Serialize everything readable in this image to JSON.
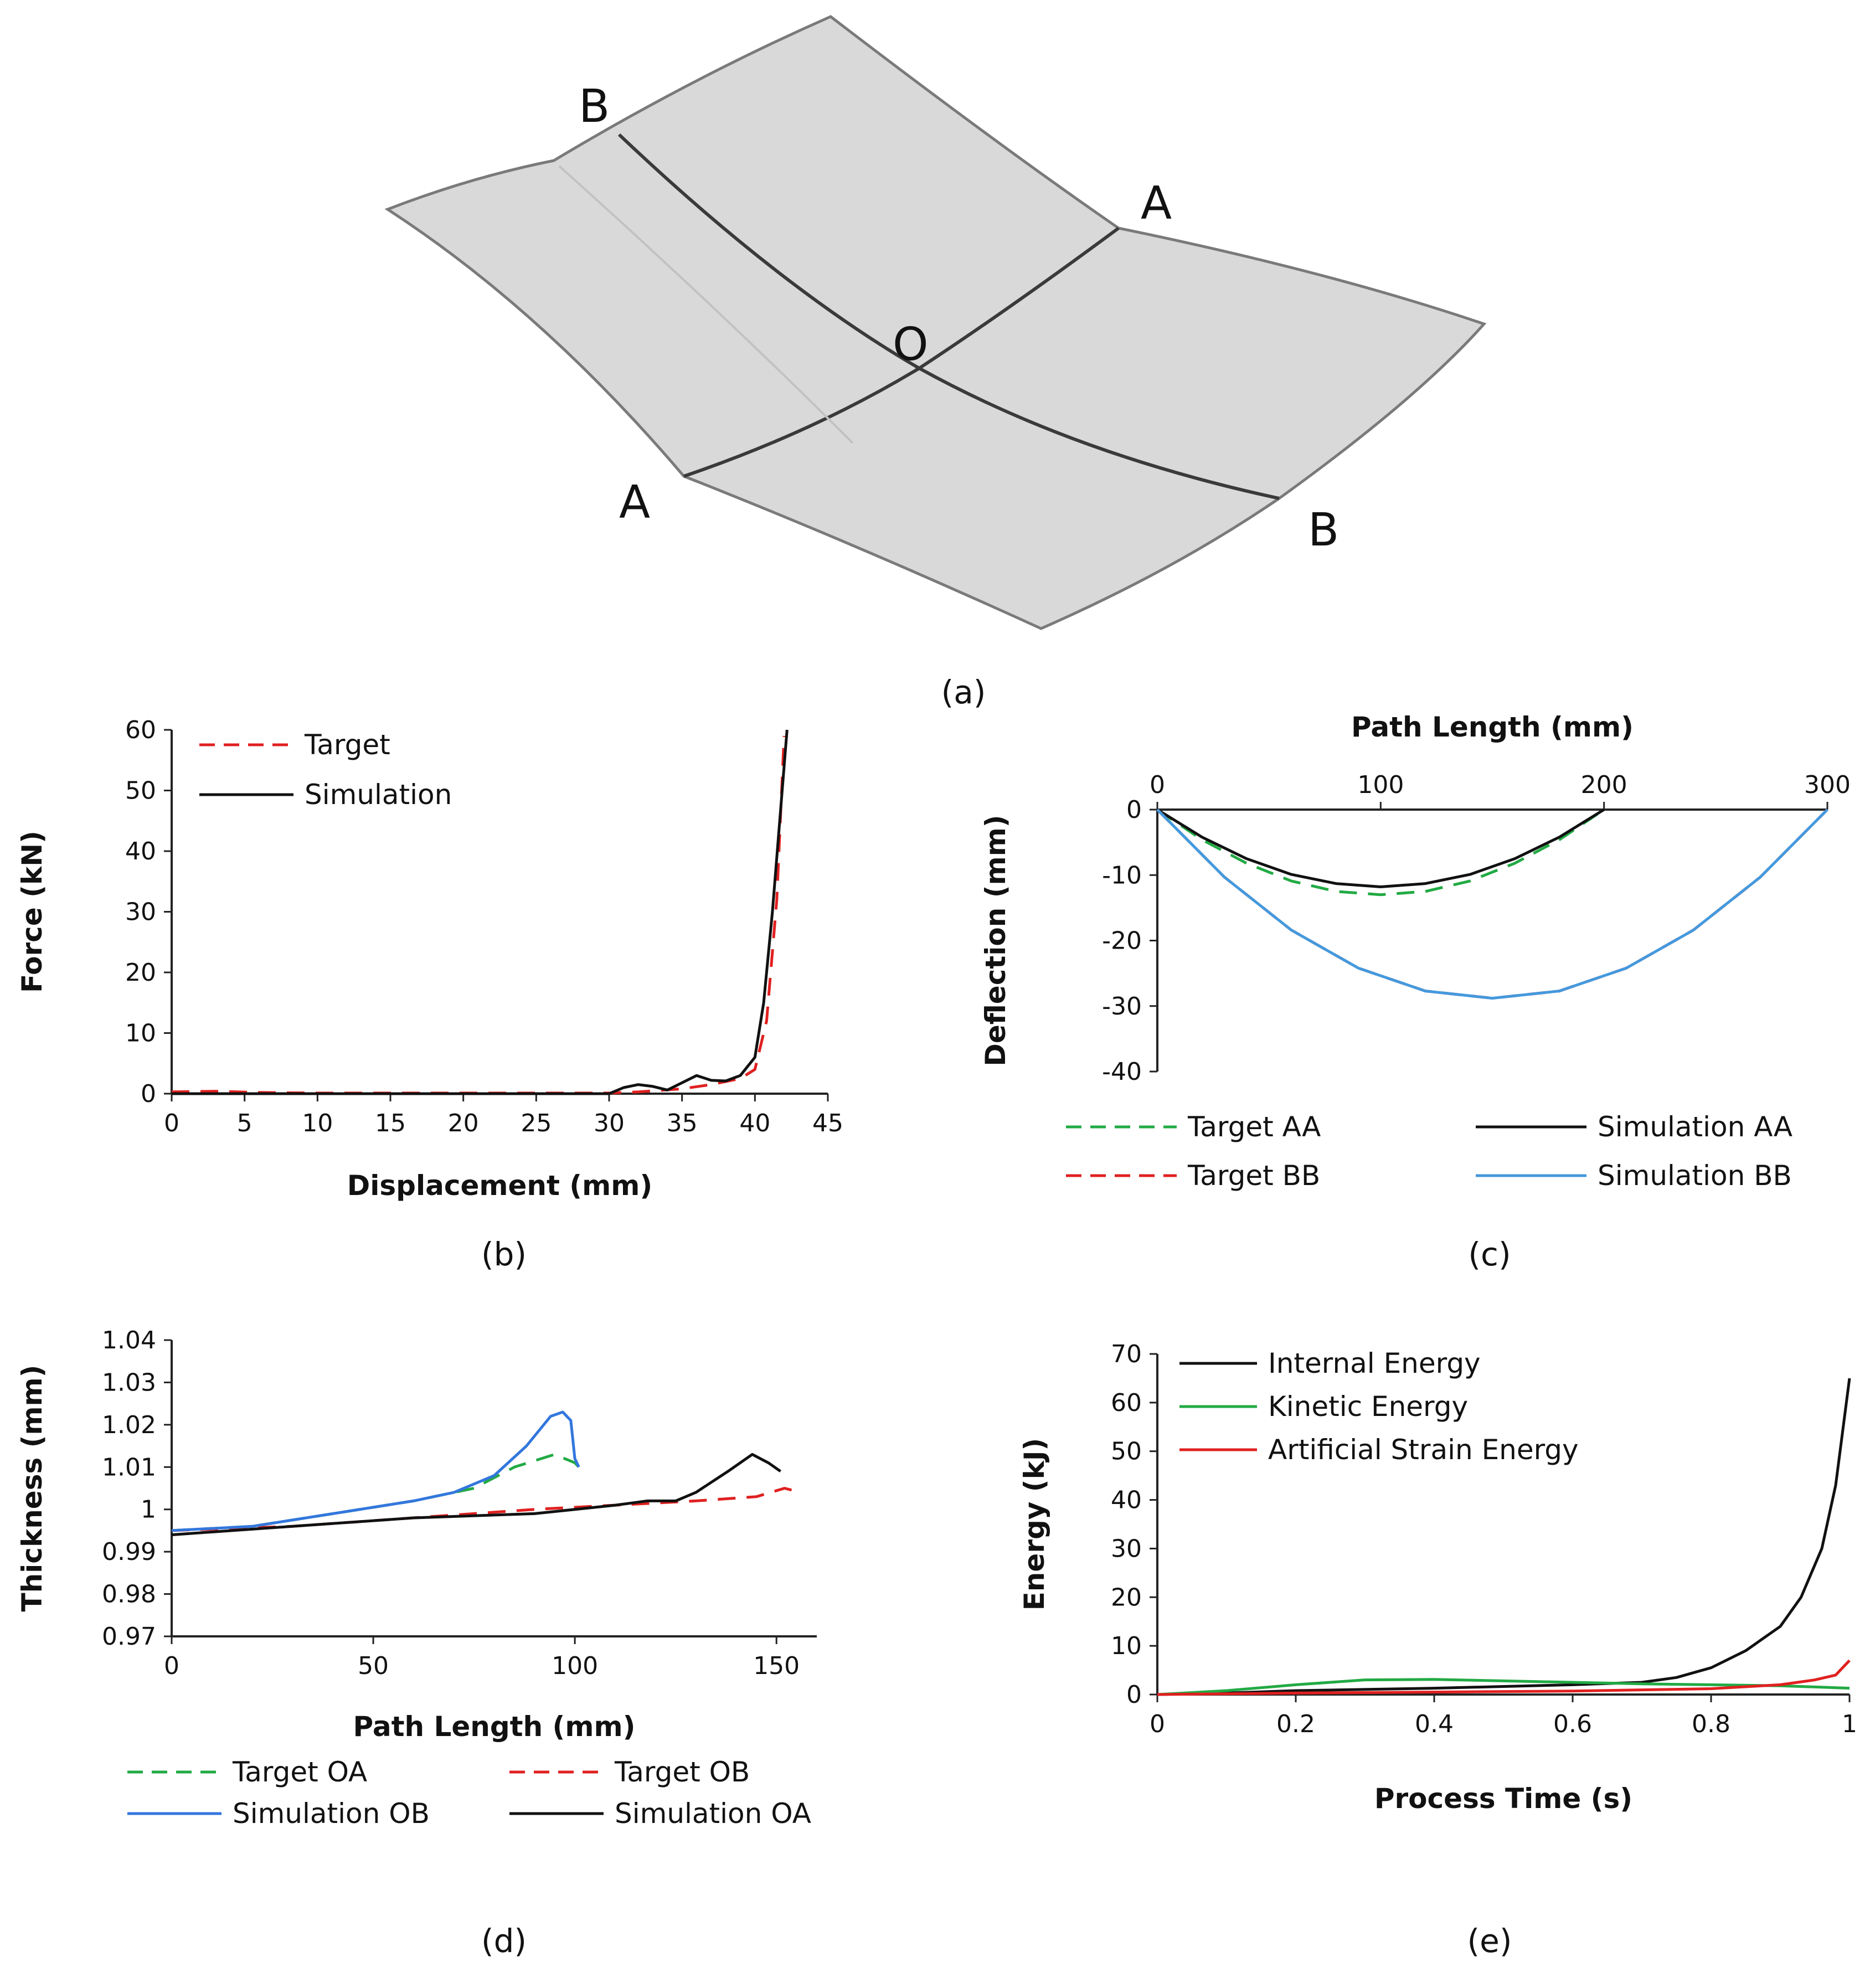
{
  "panel_labels": {
    "a": "(a)",
    "b": "(b)",
    "c": "(c)",
    "d": "(d)",
    "e": "(e)"
  },
  "panel_a": {
    "point_labels": {
      "B_top": "B",
      "A_right": "A",
      "O_center": "O",
      "A_left": "A",
      "B_bottom": "B"
    },
    "colors": {
      "sheet_fill": "#d9d9d9",
      "sheet_edge": "#7a7a7a",
      "path_line": "#3a3a3a"
    }
  },
  "chart_data": [
    {
      "id": "b",
      "type": "line",
      "title": "",
      "xlabel": "Displacement  (mm)",
      "ylabel": "Force (kN)",
      "xlim": [
        0,
        45
      ],
      "ylim": [
        0,
        60
      ],
      "xticks": [
        0,
        5,
        10,
        15,
        20,
        25,
        30,
        35,
        40,
        45
      ],
      "yticks": [
        0,
        10,
        20,
        30,
        40,
        50,
        60
      ],
      "legend_position": "top-left",
      "series": [
        {
          "name": "Target",
          "color": "#e02020",
          "dash": "dashed",
          "points": [
            [
              0,
              0.3
            ],
            [
              3,
              0.4
            ],
            [
              6,
              0.2
            ],
            [
              10,
              0.1
            ],
            [
              20,
              0.1
            ],
            [
              30,
              0.1
            ],
            [
              32,
              0.3
            ],
            [
              35,
              0.8
            ],
            [
              37,
              1.5
            ],
            [
              39,
              2.5
            ],
            [
              40,
              4
            ],
            [
              40.8,
              12
            ],
            [
              41.5,
              32
            ],
            [
              42,
              59
            ]
          ]
        },
        {
          "name": "Simulation",
          "color": "#111111",
          "dash": "solid",
          "points": [
            [
              0,
              0
            ],
            [
              10,
              0
            ],
            [
              20,
              0
            ],
            [
              30,
              0
            ],
            [
              31,
              1
            ],
            [
              32,
              1.5
            ],
            [
              33,
              1.2
            ],
            [
              34,
              0.6
            ],
            [
              35,
              1.8
            ],
            [
              36,
              3
            ],
            [
              37,
              2.2
            ],
            [
              38,
              2.1
            ],
            [
              39,
              3
            ],
            [
              40,
              6
            ],
            [
              40.6,
              15
            ],
            [
              41.2,
              30
            ],
            [
              41.7,
              45
            ],
            [
              42.2,
              60
            ]
          ]
        }
      ]
    },
    {
      "id": "c",
      "type": "line",
      "title": "",
      "xlabel": "Path Length (mm)",
      "ylabel": "Deflection  (mm)",
      "x_axis_position": "top",
      "xlim": [
        0,
        300
      ],
      "ylim": [
        -40,
        0
      ],
      "xticks": [
        0,
        100,
        200,
        300
      ],
      "yticks": [
        0,
        -10,
        -20,
        -30,
        -40
      ],
      "legend_position": "bottom",
      "series": [
        {
          "name": "Target AA",
          "color": "#22aa44",
          "dash": "dashed",
          "points": [
            [
              0,
              0
            ],
            [
              20,
              -4.6
            ],
            [
              40,
              -8.2
            ],
            [
              60,
              -10.9
            ],
            [
              80,
              -12.5
            ],
            [
              100,
              -13.0
            ],
            [
              120,
              -12.5
            ],
            [
              140,
              -10.9
            ],
            [
              160,
              -8.2
            ],
            [
              180,
              -4.6
            ],
            [
              200,
              0
            ]
          ]
        },
        {
          "name": "Simulation AA",
          "color": "#111111",
          "dash": "solid",
          "points": [
            [
              0,
              0
            ],
            [
              20,
              -4.2
            ],
            [
              40,
              -7.5
            ],
            [
              60,
              -9.9
            ],
            [
              80,
              -11.3
            ],
            [
              100,
              -11.8
            ],
            [
              120,
              -11.3
            ],
            [
              140,
              -9.9
            ],
            [
              160,
              -7.5
            ],
            [
              180,
              -4.2
            ],
            [
              200,
              0
            ]
          ]
        },
        {
          "name": "Target BB",
          "color": "#e02020",
          "dash": "dashed",
          "points": [
            [
              0,
              0
            ],
            [
              30,
              -10.3
            ],
            [
              60,
              -18.4
            ],
            [
              90,
              -24.2
            ],
            [
              120,
              -27.7
            ],
            [
              150,
              -28.8
            ],
            [
              180,
              -27.7
            ],
            [
              210,
              -24.2
            ],
            [
              240,
              -18.4
            ],
            [
              270,
              -10.3
            ],
            [
              300,
              0
            ]
          ]
        },
        {
          "name": "Simulation BB",
          "color": "#4499dd",
          "dash": "solid",
          "points": [
            [
              0,
              0
            ],
            [
              30,
              -10.3
            ],
            [
              60,
              -18.4
            ],
            [
              90,
              -24.2
            ],
            [
              120,
              -27.7
            ],
            [
              150,
              -28.8
            ],
            [
              180,
              -27.7
            ],
            [
              210,
              -24.2
            ],
            [
              240,
              -18.4
            ],
            [
              270,
              -10.3
            ],
            [
              300,
              0
            ]
          ]
        }
      ]
    },
    {
      "id": "d",
      "type": "line",
      "title": "",
      "xlabel": "Path Length (mm)",
      "ylabel": "Thickness  (mm)",
      "xlim": [
        0,
        160
      ],
      "ylim": [
        0.97,
        1.04
      ],
      "xticks": [
        0,
        50,
        100,
        150
      ],
      "yticks": [
        1.04,
        1.03,
        1.02,
        1.01,
        1,
        0.99,
        0.98,
        0.97
      ],
      "legend_position": "bottom",
      "series": [
        {
          "name": "Target OA",
          "color": "#22aa44",
          "dash": "dashed",
          "points": [
            [
              0,
              0.995
            ],
            [
              20,
              0.996
            ],
            [
              40,
              0.999
            ],
            [
              60,
              1.002
            ],
            [
              75,
              1.005
            ],
            [
              85,
              1.01
            ],
            [
              95,
              1.013
            ],
            [
              100,
              1.011
            ],
            [
              102,
              1.009
            ]
          ]
        },
        {
          "name": "Target OB",
          "color": "#e02020",
          "dash": "dashed",
          "points": [
            [
              0,
              0.995
            ],
            [
              30,
              0.996
            ],
            [
              60,
              0.998
            ],
            [
              90,
              1.0
            ],
            [
              110,
              1.001
            ],
            [
              130,
              1.002
            ],
            [
              145,
              1.003
            ],
            [
              152,
              1.005
            ],
            [
              156,
              1.004
            ]
          ]
        },
        {
          "name": "Simulation OB",
          "color": "#3377dd",
          "dash": "solid",
          "points": [
            [
              0,
              0.995
            ],
            [
              20,
              0.996
            ],
            [
              40,
              0.999
            ],
            [
              60,
              1.002
            ],
            [
              70,
              1.004
            ],
            [
              80,
              1.008
            ],
            [
              88,
              1.015
            ],
            [
              94,
              1.022
            ],
            [
              97,
              1.023
            ],
            [
              99,
              1.021
            ],
            [
              100,
              1.012
            ],
            [
              101,
              1.01
            ]
          ]
        },
        {
          "name": "Simulation OA",
          "color": "#111111",
          "dash": "solid",
          "points": [
            [
              0,
              0.994
            ],
            [
              30,
              0.996
            ],
            [
              60,
              0.998
            ],
            [
              90,
              0.999
            ],
            [
              110,
              1.001
            ],
            [
              118,
              1.002
            ],
            [
              125,
              1.002
            ],
            [
              130,
              1.004
            ],
            [
              138,
              1.009
            ],
            [
              144,
              1.013
            ],
            [
              148,
              1.011
            ],
            [
              151,
              1.009
            ]
          ]
        }
      ]
    },
    {
      "id": "e",
      "type": "line",
      "title": "",
      "xlabel": "Process Time (s)",
      "ylabel": "Energy (kJ)",
      "xlim": [
        0,
        1
      ],
      "ylim": [
        0,
        70
      ],
      "xticks": [
        0,
        0.2,
        0.4,
        0.6,
        0.8,
        1
      ],
      "yticks": [
        0,
        10,
        20,
        30,
        40,
        50,
        60,
        70
      ],
      "legend_position": "top-left",
      "series": [
        {
          "name": "Internal Energy",
          "color": "#111111",
          "dash": "solid",
          "points": [
            [
              0,
              0
            ],
            [
              0.1,
              0.3
            ],
            [
              0.2,
              0.8
            ],
            [
              0.4,
              1.3
            ],
            [
              0.6,
              2
            ],
            [
              0.7,
              2.5
            ],
            [
              0.75,
              3.5
            ],
            [
              0.8,
              5.5
            ],
            [
              0.85,
              9
            ],
            [
              0.9,
              14
            ],
            [
              0.93,
              20
            ],
            [
              0.96,
              30
            ],
            [
              0.98,
              43
            ],
            [
              1.0,
              65
            ]
          ]
        },
        {
          "name": "Kinetic Energy",
          "color": "#22aa44",
          "dash": "solid",
          "points": [
            [
              0,
              0
            ],
            [
              0.1,
              0.8
            ],
            [
              0.2,
              2
            ],
            [
              0.3,
              3
            ],
            [
              0.4,
              3.1
            ],
            [
              0.5,
              2.8
            ],
            [
              0.6,
              2.5
            ],
            [
              0.7,
              2.2
            ],
            [
              0.8,
              2
            ],
            [
              0.9,
              1.8
            ],
            [
              1.0,
              1.3
            ]
          ]
        },
        {
          "name": "Artificial Strain Energy",
          "color": "#e02020",
          "dash": "solid",
          "points": [
            [
              0,
              0
            ],
            [
              0.2,
              0.3
            ],
            [
              0.4,
              0.5
            ],
            [
              0.6,
              0.7
            ],
            [
              0.8,
              1.2
            ],
            [
              0.9,
              2
            ],
            [
              0.95,
              3
            ],
            [
              0.98,
              4
            ],
            [
              1.0,
              7
            ]
          ]
        }
      ]
    }
  ]
}
